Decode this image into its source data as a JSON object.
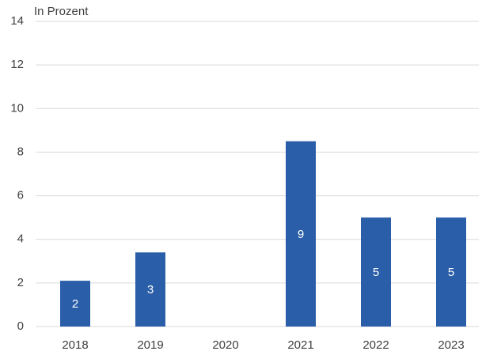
{
  "chart_data": {
    "type": "bar",
    "title": "In Prozent",
    "categories": [
      "2018",
      "2019",
      "2020",
      "2021",
      "2022",
      "2023"
    ],
    "values": [
      2.1,
      3.4,
      null,
      8.5,
      5.0,
      5.0
    ],
    "value_labels": [
      "2",
      "3",
      null,
      "9",
      "5",
      "5"
    ],
    "color": "#2a5ea8",
    "ylim": [
      0,
      14
    ],
    "yticks": [
      0,
      2,
      4,
      6,
      8,
      10,
      12,
      14
    ],
    "grid": true
  }
}
